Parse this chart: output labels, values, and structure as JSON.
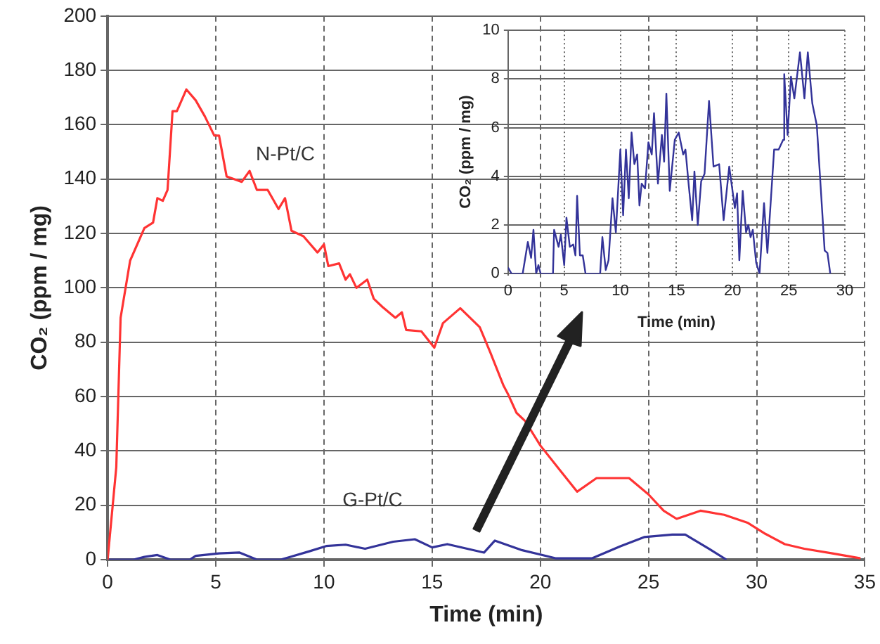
{
  "chart_data": [
    {
      "type": "line",
      "xlabel": "Time (min)",
      "ylabel": "CO₂ (ppm / mg)",
      "xlim": [
        0,
        35
      ],
      "xticks": [
        0,
        5,
        10,
        15,
        20,
        25,
        30,
        35
      ],
      "ylim": [
        0,
        200
      ],
      "yticks": [
        0,
        20,
        40,
        60,
        80,
        100,
        120,
        140,
        160,
        180,
        200
      ],
      "grid": true,
      "legend": false,
      "marker": "none",
      "line_style": "solid",
      "annotations": [
        "N-Pt/C",
        "G-Pt/C"
      ],
      "series": [
        {
          "color": "#ff3333",
          "x": [
            0,
            0.4,
            0.6,
            1.04,
            1.7,
            2.1,
            2.3,
            2.55,
            2.77,
            3.0,
            3.2,
            3.64,
            4.07,
            4.5,
            4.93,
            5.15,
            5.5,
            6.2,
            6.56,
            6.9,
            7.4,
            7.9,
            8.2,
            8.5,
            9.05,
            9.7,
            10.0,
            10.2,
            10.7,
            11.0,
            11.2,
            11.5,
            12.0,
            12.3,
            12.7,
            13.3,
            13.6,
            13.8,
            14.5,
            15.1,
            15.5,
            16.3,
            17.2,
            17.7,
            18.3,
            18.5,
            18.9,
            19.3,
            20,
            20.9,
            21.7,
            22.6,
            24.1,
            25,
            25.7,
            26.3,
            27.4,
            28.5,
            29.6,
            30.4,
            31.3,
            32.2,
            33.5,
            34.8
          ],
          "values": [
            0,
            34,
            89,
            110,
            122,
            124,
            133,
            132,
            136,
            165,
            165,
            173,
            169,
            163,
            156,
            156,
            141,
            139,
            143,
            136,
            136,
            129,
            133,
            121,
            119,
            113,
            116,
            108,
            109,
            103,
            105,
            100,
            103,
            96,
            93,
            89,
            91,
            84.5,
            84,
            78,
            87,
            92.5,
            85.5,
            76,
            64,
            61,
            54,
            51,
            42,
            33,
            25,
            30,
            30,
            24,
            18,
            15,
            18,
            16.5,
            13.5,
            9.5,
            5.7,
            4,
            2.3,
            0.5
          ]
        },
        {
          "color": "#333399",
          "x": [
            0,
            1.2,
            1.7,
            2.3,
            2.9,
            3.8,
            4.07,
            5.15,
            6.1,
            6.9,
            8.0,
            8.4,
            9.3,
            10.1,
            11,
            11.9,
            13.2,
            14.2,
            15.0,
            15.7,
            17.4,
            17.9,
            19.1,
            20.7,
            22.4,
            23.7,
            24.8,
            26.1,
            26.7,
            27.8,
            28.6
          ],
          "values": [
            0,
            0,
            1,
            1.7,
            0,
            0,
            1.4,
            2.3,
            2.6,
            0,
            0,
            0.9,
            3,
            5,
            5.5,
            4,
            6.6,
            7.5,
            4.5,
            5.7,
            2.6,
            7,
            3.6,
            0.5,
            0.5,
            4.9,
            8.3,
            9.2,
            9.2,
            4,
            0
          ]
        }
      ]
    },
    {
      "type": "line",
      "xlabel": "Time (min)",
      "ylabel": "CO₂ (ppm / mg)",
      "xlim": [
        0,
        30
      ],
      "xticks": [
        0,
        5,
        10,
        15,
        20,
        25,
        30
      ],
      "ylim": [
        0,
        10
      ],
      "yticks": [
        0,
        2,
        4,
        6,
        8,
        10
      ],
      "grid": true,
      "legend": false,
      "marker": "none",
      "line_style": "solid",
      "series": [
        {
          "color": "#333399",
          "x": [
            0,
            0.3,
            1.3,
            1.76,
            2.05,
            2.26,
            2.5,
            2.7,
            2.9,
            4.0,
            4.1,
            4.5,
            4.7,
            5.0,
            5.2,
            5.5,
            5.8,
            6.0,
            6.15,
            6.4,
            6.65,
            6.9,
            8.2,
            8.4,
            8.7,
            8.95,
            9.3,
            9.6,
            10.0,
            10.25,
            10.5,
            10.75,
            11.0,
            11.25,
            11.5,
            11.7,
            11.9,
            12.2,
            12.5,
            12.8,
            13.0,
            13.35,
            13.7,
            13.9,
            14.1,
            14.4,
            14.85,
            15.2,
            15.6,
            15.8,
            16.1,
            16.4,
            16.6,
            16.9,
            17.2,
            17.5,
            17.9,
            18.3,
            18.8,
            19.2,
            19.7,
            20.2,
            20.4,
            20.6,
            20.9,
            21.2,
            21.4,
            21.6,
            21.8,
            22.1,
            22.4,
            22.8,
            23.1,
            23.7,
            24.1,
            24.5,
            24.6,
            24.9,
            25.2,
            25.5,
            26.0,
            26.4,
            26.7,
            27.1,
            27.5,
            27.8,
            28.2,
            28.45,
            28.7
          ],
          "values": [
            0.25,
            0,
            0,
            1.3,
            0.65,
            1.8,
            0,
            0.35,
            0,
            0,
            1.8,
            1.1,
            1.6,
            0.35,
            2.3,
            1.1,
            1.2,
            0.75,
            3.2,
            0.75,
            0.75,
            0,
            0,
            1.5,
            0.15,
            0.55,
            3.1,
            1.7,
            5.1,
            2.4,
            5.1,
            3.1,
            5.8,
            4.5,
            4.9,
            2.8,
            3.7,
            3.5,
            5.4,
            4.9,
            6.6,
            3.7,
            5.7,
            4.6,
            7.4,
            3.4,
            5.5,
            5.8,
            4.9,
            5.1,
            3.6,
            2.2,
            4.2,
            2.0,
            3.8,
            4.1,
            7.1,
            4.4,
            4.5,
            2.2,
            4.4,
            2.7,
            3.3,
            0.55,
            3.4,
            1.7,
            2.0,
            1.5,
            1.8,
            0.45,
            0,
            2.9,
            0.85,
            5.1,
            5.1,
            5.5,
            8.2,
            5.7,
            8.1,
            7.2,
            9.1,
            7.2,
            9.1,
            7.0,
            6.1,
            3.9,
            0.95,
            0.85,
            0
          ]
        }
      ]
    }
  ]
}
